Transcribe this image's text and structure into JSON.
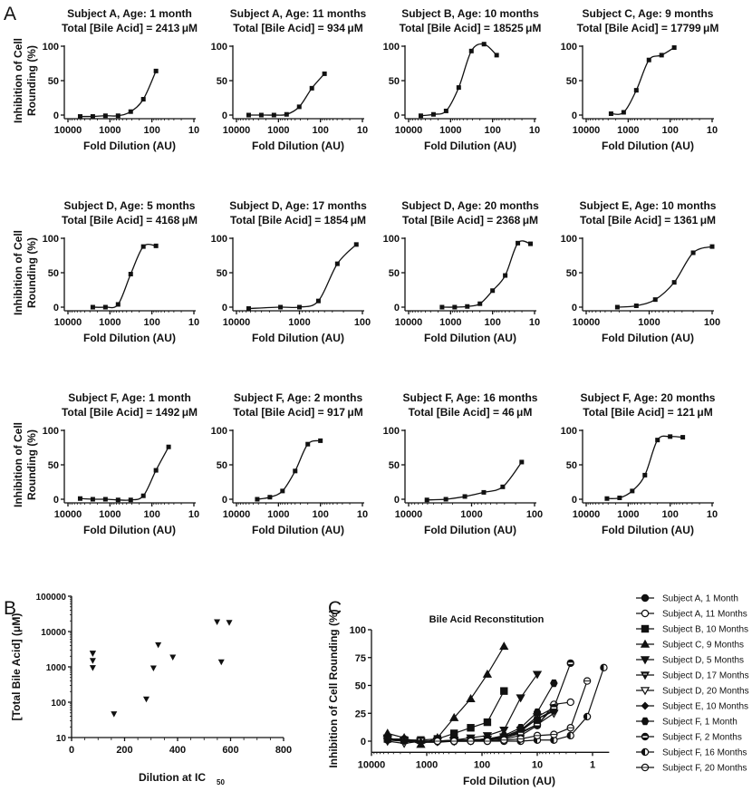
{
  "panel_labels": {
    "a": "A",
    "b": "B",
    "c": "C"
  },
  "chart_data": [
    {
      "type": "line",
      "title": "Subject A, Age: 1 month",
      "subtitle": "Total [Bile Acid] = 2413 μM",
      "ylabel_lines": [
        "Inhibition of Cell",
        "Rounding (%)"
      ],
      "xlabel": "Fold Dilution (AU)",
      "x_scale": "log",
      "x_reversed": true,
      "xlim": [
        10000,
        10
      ],
      "ylim": [
        -5,
        100
      ],
      "xtick_labels": [
        "10000",
        "1000",
        "100",
        "10"
      ],
      "xticks": [
        10000,
        1000,
        100,
        10
      ],
      "ytick_labels": [
        "0",
        "50",
        "100"
      ],
      "yticks": [
        0,
        50,
        100
      ],
      "x": [
        5120,
        2560,
        1280,
        640,
        320,
        160,
        80
      ],
      "y": [
        -2,
        -2,
        -1,
        -1,
        5,
        23,
        64
      ]
    },
    {
      "type": "line",
      "title": "Subject A, Age: 11 months",
      "subtitle": "Total [Bile Acid] = 934 μM",
      "xlabel": "Fold Dilution (AU)",
      "x_scale": "log",
      "x_reversed": true,
      "xlim": [
        10000,
        10
      ],
      "ylim": [
        -5,
        100
      ],
      "xtick_labels": [
        "10000",
        "1000",
        "100",
        "10"
      ],
      "xticks": [
        10000,
        1000,
        100,
        10
      ],
      "ytick_labels": [
        "0",
        "50",
        "100"
      ],
      "yticks": [
        0,
        50,
        100
      ],
      "x": [
        5120,
        2560,
        1280,
        640,
        320,
        160,
        80
      ],
      "y": [
        0,
        0,
        0,
        1,
        12,
        39,
        60
      ]
    },
    {
      "type": "line",
      "title": "Subject B, Age: 10 months",
      "subtitle": "Total [Bile Acid] = 18525 μM",
      "xlabel": "Fold Dilution (AU)",
      "x_scale": "log",
      "x_reversed": true,
      "xlim": [
        10000,
        10
      ],
      "ylim": [
        -5,
        100
      ],
      "xtick_labels": [
        "10000",
        "1000",
        "100",
        "10"
      ],
      "xticks": [
        10000,
        1000,
        100,
        10
      ],
      "ytick_labels": [
        "0",
        "50",
        "100"
      ],
      "yticks": [
        0,
        50,
        100
      ],
      "x": [
        5120,
        2560,
        1280,
        640,
        320,
        160,
        80
      ],
      "y": [
        -1,
        1,
        6,
        40,
        93,
        103,
        87
      ]
    },
    {
      "type": "line",
      "title": "Subject C, Age: 9 months",
      "subtitle": "Total [Bile Acid] = 17799 μM",
      "xlabel": "Fold Dilution (AU)",
      "x_scale": "log",
      "x_reversed": true,
      "xlim": [
        10000,
        10
      ],
      "ylim": [
        -5,
        100
      ],
      "xtick_labels": [
        "10000",
        "1000",
        "100",
        "10"
      ],
      "xticks": [
        10000,
        1000,
        100,
        10
      ],
      "ytick_labels": [
        "0",
        "50",
        "100"
      ],
      "yticks": [
        0,
        50,
        100
      ],
      "x": [
        2560,
        1280,
        640,
        320,
        160,
        80
      ],
      "y": [
        2,
        4,
        36,
        80,
        87,
        98
      ]
    },
    {
      "type": "line",
      "title": "Subject D, Age: 5 months",
      "subtitle": "Total [Bile Acid] = 4168 μM",
      "ylabel_lines": [
        "Inhibition of Cell",
        "Rounding (%)"
      ],
      "xlabel": "Fold Dilution (AU)",
      "x_scale": "log",
      "x_reversed": true,
      "xlim": [
        10000,
        10
      ],
      "ylim": [
        -5,
        100
      ],
      "xtick_labels": [
        "10000",
        "1000",
        "100",
        "10"
      ],
      "xticks": [
        10000,
        1000,
        100,
        10
      ],
      "ytick_labels": [
        "0",
        "50",
        "100"
      ],
      "yticks": [
        0,
        50,
        100
      ],
      "x": [
        2560,
        1280,
        640,
        320,
        160,
        80
      ],
      "y": [
        0,
        0,
        4,
        48,
        88,
        89
      ]
    },
    {
      "type": "line",
      "title": "Subject D, Age: 17 months",
      "subtitle": "Total [Bile Acid] = 1854 μM",
      "xlabel": "Fold Dilution (AU)",
      "x_scale": "log",
      "x_reversed": true,
      "xlim": [
        10000,
        100
      ],
      "ylim": [
        -5,
        100
      ],
      "xtick_labels": [
        "10000",
        "1000",
        "100"
      ],
      "xticks": [
        10000,
        1000,
        100
      ],
      "ytick_labels": [
        "0",
        "50",
        "100"
      ],
      "yticks": [
        0,
        50,
        100
      ],
      "x": [
        6400,
        2000,
        1000,
        500,
        250,
        125
      ],
      "y": [
        -2,
        0,
        0,
        9,
        63,
        91
      ]
    },
    {
      "type": "line",
      "title": "Subject D, Age: 20 months",
      "subtitle": "Total [Bile Acid] = 2368 μM",
      "xlabel": "Fold Dilution (AU)",
      "x_scale": "log",
      "x_reversed": true,
      "xlim": [
        10000,
        10
      ],
      "ylim": [
        -5,
        100
      ],
      "xtick_labels": [
        "10000",
        "1000",
        "100",
        "10"
      ],
      "xticks": [
        10000,
        1000,
        100,
        10
      ],
      "ytick_labels": [
        "0",
        "50",
        "100"
      ],
      "yticks": [
        0,
        50,
        100
      ],
      "x": [
        1600,
        800,
        400,
        200,
        100,
        50,
        25,
        12.5
      ],
      "y": [
        0,
        0,
        1,
        5,
        24,
        46,
        93,
        92
      ]
    },
    {
      "type": "line",
      "title": "Subject E, Age: 10 months",
      "subtitle": "Total [Bile Acid] = 1361 μM",
      "xlabel": "Fold Dilution (AU)",
      "x_scale": "log",
      "x_reversed": true,
      "xlim": [
        10000,
        100
      ],
      "ylim": [
        -5,
        100
      ],
      "xtick_labels": [
        "10000",
        "1000",
        "100"
      ],
      "xticks": [
        10000,
        1000,
        100
      ],
      "ytick_labels": [
        "0",
        "50",
        "100"
      ],
      "yticks": [
        0,
        50,
        100
      ],
      "x": [
        3200,
        1600,
        800,
        400,
        200,
        100
      ],
      "y": [
        0,
        2,
        11,
        36,
        79,
        88
      ]
    },
    {
      "type": "line",
      "title": "Subject F, Age: 1 month",
      "subtitle": "Total [Bile Acid] = 1492 μM",
      "ylabel_lines": [
        "Inhibition of Cell",
        "Rounding (%)"
      ],
      "xlabel": "Fold Dilution (AU)",
      "x_scale": "log",
      "x_reversed": true,
      "xlim": [
        10000,
        10
      ],
      "ylim": [
        -5,
        100
      ],
      "xtick_labels": [
        "10000",
        "1000",
        "100",
        "10"
      ],
      "xticks": [
        10000,
        1000,
        100,
        10
      ],
      "ytick_labels": [
        "0",
        "50",
        "100"
      ],
      "yticks": [
        0,
        50,
        100
      ],
      "x": [
        5120,
        2560,
        1280,
        640,
        320,
        160,
        80,
        40
      ],
      "y": [
        1,
        0,
        0,
        -1,
        -1,
        5,
        42,
        76
      ]
    },
    {
      "type": "line",
      "title": "Subject F, Age: 2 months",
      "subtitle": "Total [Bile Acid] = 917 μM",
      "xlabel": "Fold Dilution (AU)",
      "x_scale": "log",
      "x_reversed": true,
      "xlim": [
        10000,
        10
      ],
      "ylim": [
        -5,
        100
      ],
      "xtick_labels": [
        "10000",
        "1000",
        "100",
        "10"
      ],
      "xticks": [
        10000,
        1000,
        100,
        10
      ],
      "ytick_labels": [
        "0",
        "50",
        "100"
      ],
      "yticks": [
        0,
        50,
        100
      ],
      "x": [
        3200,
        1600,
        800,
        400,
        200,
        100
      ],
      "y": [
        0,
        3,
        12,
        41,
        80,
        85
      ]
    },
    {
      "type": "line",
      "title": "Subject F, Age: 16 months",
      "subtitle": "Total [Bile Acid] = 46 μM",
      "xlabel": "Fold Dilution (AU)",
      "x_scale": "log",
      "x_reversed": true,
      "xlim": [
        10000,
        100
      ],
      "ylim": [
        -5,
        100
      ],
      "xtick_labels": [
        "10000",
        "1000",
        "100"
      ],
      "xticks": [
        10000,
        1000,
        100
      ],
      "ytick_labels": [
        "0",
        "50",
        "100"
      ],
      "yticks": [
        0,
        50,
        100
      ],
      "x": [
        5120,
        2560,
        1280,
        640,
        320,
        160
      ],
      "y": [
        -1,
        0,
        4,
        10,
        18,
        54
      ]
    },
    {
      "type": "line",
      "title": "Subject F, Age: 20 months",
      "subtitle": "Total [Bile Acid] = 121 μM",
      "xlabel": "Fold Dilution (AU)",
      "x_scale": "log",
      "x_reversed": true,
      "xlim": [
        10000,
        10
      ],
      "ylim": [
        -5,
        100
      ],
      "xtick_labels": [
        "10000",
        "1000",
        "100",
        "10"
      ],
      "xticks": [
        10000,
        1000,
        100,
        10
      ],
      "ytick_labels": [
        "0",
        "50",
        "100"
      ],
      "yticks": [
        0,
        50,
        100
      ],
      "x": [
        3200,
        1600,
        800,
        400,
        200,
        100,
        50
      ],
      "y": [
        1,
        2,
        12,
        35,
        86,
        91,
        90
      ]
    },
    {
      "type": "scatter",
      "ylabel": "[Total Bile Acid] (μM)",
      "xlabel": "Dilution at IC",
      "xlabel_subscript": "50",
      "y_scale": "log",
      "xlim": [
        0,
        800
      ],
      "ylim": [
        10,
        100000
      ],
      "xticks": [
        0,
        200,
        400,
        600,
        800
      ],
      "xtick_labels": [
        "0",
        "200",
        "400",
        "600",
        "800"
      ],
      "yticks": [
        10,
        100,
        1000,
        10000,
        100000
      ],
      "ytick_labels": [
        "10",
        "100",
        "1000",
        "10000",
        "100000"
      ],
      "points": [
        [
          80,
          2413
        ],
        [
          80,
          2368
        ],
        [
          80,
          1492
        ],
        [
          80,
          934
        ],
        [
          160,
          46
        ],
        [
          282,
          121
        ],
        [
          309,
          917
        ],
        [
          327,
          4168
        ],
        [
          382,
          1854
        ],
        [
          549,
          18525
        ],
        [
          565,
          1361
        ],
        [
          595,
          17799
        ]
      ]
    },
    {
      "type": "line",
      "title": "Bile Acid Reconstitution",
      "ylabel": "Inhibition of Cell Rounding (%)",
      "xlabel": "Fold Dilution (AU)",
      "x_scale": "log",
      "x_reversed": true,
      "xlim": [
        10000,
        0.5
      ],
      "ylim": [
        -10,
        100
      ],
      "xticks": [
        10000,
        1000,
        100,
        10,
        1
      ],
      "xtick_labels": [
        "10000",
        "1000",
        "100",
        "10",
        "1"
      ],
      "yticks": [
        0,
        25,
        50,
        75,
        100
      ],
      "ytick_labels": [
        "0",
        "25",
        "50",
        "75",
        "100"
      ],
      "legend_position": "right",
      "series": [
        {
          "name": "Subject A, 1 Month",
          "marker": "filled-circle",
          "x": [
            5120,
            2560,
            1280,
            640,
            320,
            160,
            80,
            40,
            20,
            10,
            5
          ],
          "y": [
            2,
            2,
            0,
            0,
            1,
            1,
            2,
            4,
            10,
            20,
            28
          ]
        },
        {
          "name": "Subject A, 11 Months",
          "marker": "open-circle",
          "x": [
            5120,
            2560,
            1280,
            640,
            320,
            160,
            80,
            40,
            20,
            10,
            5,
            2.5
          ],
          "y": [
            1,
            1,
            0,
            0,
            0,
            1,
            1,
            2,
            5,
            14,
            33,
            35
          ]
        },
        {
          "name": "Subject B, 10 Months",
          "marker": "filled-square",
          "x": [
            5120,
            2560,
            1280,
            640,
            320,
            160,
            80,
            40
          ],
          "y": [
            2,
            1,
            1,
            2,
            7,
            12,
            17,
            45
          ]
        },
        {
          "name": "Subject C, 9 Months",
          "marker": "filled-triangle-up",
          "x": [
            5120,
            2560,
            1280,
            640,
            320,
            160,
            80,
            40
          ],
          "y": [
            7,
            3,
            -3,
            3,
            21,
            38,
            60,
            85
          ]
        },
        {
          "name": "Subject D, 5 Months",
          "marker": "filled-triangle-down",
          "x": [
            5120,
            2560,
            1280,
            640,
            320,
            160,
            80,
            40,
            20,
            10
          ],
          "y": [
            3,
            0,
            -1,
            0,
            1,
            3,
            5,
            10,
            39,
            60
          ]
        },
        {
          "name": "Subject D, 17 Months",
          "marker": "striped-triangle-down",
          "x": [
            5120,
            2560,
            1280,
            640,
            320,
            160,
            80,
            40,
            20,
            10,
            5
          ],
          "y": [
            2,
            1,
            0,
            0,
            0,
            1,
            2,
            4,
            10,
            22,
            30
          ]
        },
        {
          "name": "Subject D, 20 Months",
          "marker": "open-triangle-down",
          "x": [
            5120,
            2560,
            1280,
            640,
            320,
            160,
            80,
            40,
            20,
            10,
            5
          ],
          "y": [
            0,
            -2,
            0,
            0,
            0,
            1,
            2,
            3,
            8,
            15,
            25
          ]
        },
        {
          "name": "Subject E, 10 Months",
          "marker": "filled-diamond",
          "x": [
            5120,
            2560,
            1280,
            640,
            320,
            160,
            80,
            40,
            20,
            10,
            5
          ],
          "y": [
            1,
            0,
            -1,
            -1,
            0,
            0,
            1,
            3,
            9,
            20,
            27
          ]
        },
        {
          "name": "Subject F, 1 Month",
          "marker": "filled-hexagon",
          "x": [
            640,
            320,
            160,
            80,
            40,
            20,
            10,
            5
          ],
          "y": [
            0,
            0,
            1,
            2,
            5,
            12,
            26,
            52
          ]
        },
        {
          "name": "Subject F, 2 Months",
          "marker": "half-filled-circle",
          "x": [
            640,
            320,
            160,
            80,
            40,
            20,
            10,
            5,
            2.5
          ],
          "y": [
            0,
            0,
            0,
            1,
            3,
            7,
            15,
            30,
            70
          ]
        },
        {
          "name": "Subject F, 16 Months",
          "marker": "left-half-circle",
          "x": [
            640,
            320,
            160,
            80,
            40,
            20,
            10,
            5,
            2.5,
            1.25,
            0.625
          ],
          "y": [
            0,
            0,
            0,
            0,
            0,
            0,
            1,
            1,
            5,
            22,
            66
          ]
        },
        {
          "name": "Subject F, 20 Months",
          "marker": "open-circle-bar",
          "x": [
            640,
            320,
            160,
            80,
            40,
            20,
            10,
            5,
            2.5,
            1.25
          ],
          "y": [
            0,
            0,
            0,
            0,
            1,
            2,
            5,
            6,
            12,
            54
          ]
        }
      ]
    }
  ]
}
